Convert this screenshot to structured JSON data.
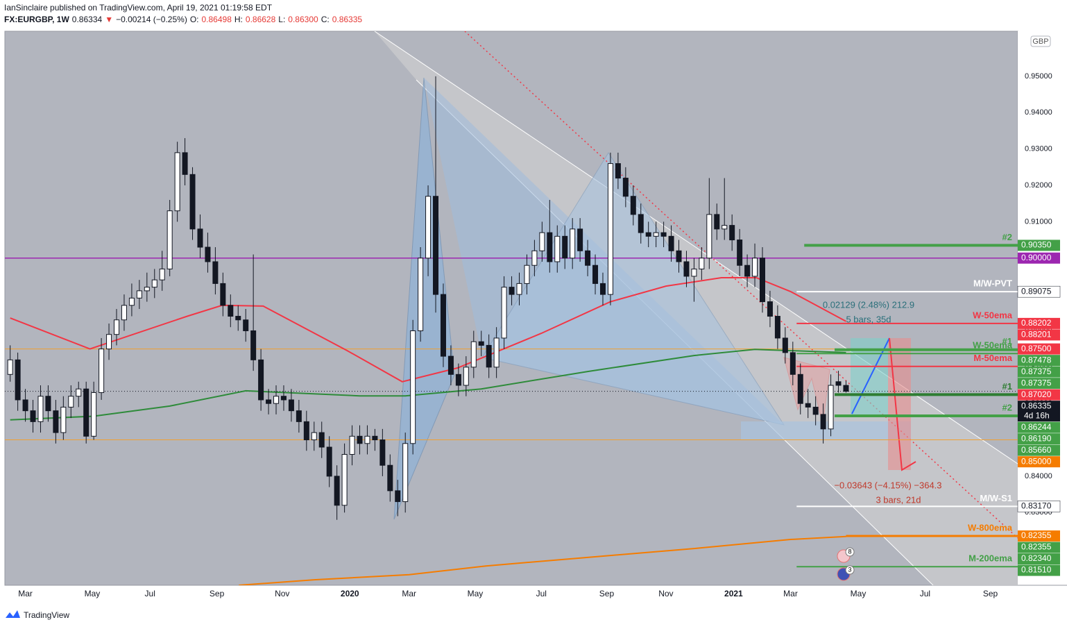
{
  "header": {
    "publisher": "IanSinclaire published on TradingView.com, April 19, 2021 01:19:58 EDT",
    "symbol": "FX:EURGBP, 1W",
    "last": "0.86334",
    "arrow": "▼",
    "change": "−0.00214 (−0.25%)",
    "ohlc": [
      {
        "key": "O:",
        "value": "0.86498"
      },
      {
        "key": "H:",
        "value": "0.86628"
      },
      {
        "key": "L:",
        "value": "0.86300"
      },
      {
        "key": "C:",
        "value": "0.86335"
      }
    ]
  },
  "brand": "TradingView",
  "currency": "GBP",
  "events": [
    8,
    3
  ],
  "annotations": [
    {
      "text": "0.02129 (2.48%) 212.9",
      "color": "#2a6f7a"
    },
    {
      "text": "5 bars, 35d",
      "color": "#2a6f7a"
    },
    {
      "text": "−0.03643 (−4.15%) −364.3",
      "color": "#c0392b"
    },
    {
      "text": "3 bars, 21d",
      "color": "#c0392b"
    }
  ],
  "chart_data": {
    "type": "candlestick",
    "up_color": "#ffffff",
    "down_color": "#131722",
    "xlim": [
      -0.7,
      132.6
    ],
    "ylim": [
      0.81,
      0.9624
    ],
    "xticks": [
      {
        "value": 2,
        "label": "Mar"
      },
      {
        "value": 10.8,
        "label": "May"
      },
      {
        "value": 18.4,
        "label": "Jul"
      },
      {
        "value": 27.2,
        "label": "Sep"
      },
      {
        "value": 35.8,
        "label": "Nov"
      },
      {
        "value": 44.7,
        "label": "2020"
      },
      {
        "value": 52.5,
        "label": "Mar"
      },
      {
        "value": 61.2,
        "label": "May"
      },
      {
        "value": 69.9,
        "label": "Jul"
      },
      {
        "value": 78.5,
        "label": "Sep"
      },
      {
        "value": 86.3,
        "label": "Nov"
      },
      {
        "value": 95.2,
        "label": "2021"
      },
      {
        "value": 102.7,
        "label": "Mar"
      },
      {
        "value": 111.6,
        "label": "May"
      },
      {
        "value": 120.4,
        "label": "Jul"
      },
      {
        "value": 129,
        "label": "Sep"
      }
    ],
    "yticks": [
      {
        "value": 0.83,
        "label": "0.83000"
      },
      {
        "value": 0.84,
        "label": "0.84000"
      },
      {
        "value": 0.85,
        "label": "0.85000"
      },
      {
        "value": 0.86,
        "label": "0.86000"
      },
      {
        "value": 0.87,
        "label": "0.87000"
      },
      {
        "value": 0.88,
        "label": "0.88000"
      },
      {
        "value": 0.89,
        "label": "0.89000"
      },
      {
        "value": 0.9,
        "label": "0.90000"
      },
      {
        "value": 0.91,
        "label": "0.91000"
      },
      {
        "value": 0.92,
        "label": "0.92000"
      },
      {
        "value": 0.93,
        "label": "0.93000"
      },
      {
        "value": 0.94,
        "label": "0.94000"
      },
      {
        "value": 0.95,
        "label": "0.95000"
      }
    ],
    "ohlc": [
      [
        0.868,
        0.876,
        0.866,
        0.872
      ],
      [
        0.872,
        0.874,
        0.858,
        0.861
      ],
      [
        0.861,
        0.864,
        0.855,
        0.858
      ],
      [
        0.858,
        0.861,
        0.852,
        0.855
      ],
      [
        0.855,
        0.865,
        0.852,
        0.862
      ],
      [
        0.862,
        0.865,
        0.855,
        0.858
      ],
      [
        0.858,
        0.861,
        0.849,
        0.852
      ],
      [
        0.852,
        0.862,
        0.85,
        0.859
      ],
      [
        0.859,
        0.865,
        0.856,
        0.862
      ],
      [
        0.862,
        0.866,
        0.859,
        0.864
      ],
      [
        0.864,
        0.866,
        0.849,
        0.851
      ],
      [
        0.851,
        0.866,
        0.85,
        0.863
      ],
      [
        0.863,
        0.878,
        0.861,
        0.875
      ],
      [
        0.875,
        0.882,
        0.872,
        0.879
      ],
      [
        0.879,
        0.886,
        0.876,
        0.883
      ],
      [
        0.883,
        0.89,
        0.88,
        0.887
      ],
      [
        0.887,
        0.893,
        0.884,
        0.889
      ],
      [
        0.889,
        0.894,
        0.886,
        0.891
      ],
      [
        0.891,
        0.896,
        0.888,
        0.892
      ],
      [
        0.892,
        0.897,
        0.889,
        0.894
      ],
      [
        0.894,
        0.902,
        0.891,
        0.897
      ],
      [
        0.897,
        0.916,
        0.895,
        0.913
      ],
      [
        0.913,
        0.932,
        0.91,
        0.929
      ],
      [
        0.929,
        0.933,
        0.92,
        0.923
      ],
      [
        0.923,
        0.925,
        0.905,
        0.908
      ],
      [
        0.908,
        0.912,
        0.9,
        0.903
      ],
      [
        0.903,
        0.907,
        0.896,
        0.899
      ],
      [
        0.899,
        0.903,
        0.89,
        0.893
      ],
      [
        0.893,
        0.896,
        0.884,
        0.887
      ],
      [
        0.887,
        0.89,
        0.881,
        0.884
      ],
      [
        0.884,
        0.887,
        0.88,
        0.883
      ],
      [
        0.883,
        0.886,
        0.877,
        0.88
      ],
      [
        0.88,
        0.901,
        0.869,
        0.872
      ],
      [
        0.872,
        0.875,
        0.858,
        0.861
      ],
      [
        0.861,
        0.864,
        0.857,
        0.86
      ],
      [
        0.86,
        0.865,
        0.857,
        0.862
      ],
      [
        0.862,
        0.865,
        0.858,
        0.861
      ],
      [
        0.861,
        0.864,
        0.855,
        0.858
      ],
      [
        0.858,
        0.861,
        0.852,
        0.855
      ],
      [
        0.855,
        0.858,
        0.847,
        0.85
      ],
      [
        0.85,
        0.855,
        0.847,
        0.852
      ],
      [
        0.852,
        0.855,
        0.845,
        0.848
      ],
      [
        0.848,
        0.851,
        0.837,
        0.84
      ],
      [
        0.84,
        0.843,
        0.828,
        0.832
      ],
      [
        0.832,
        0.849,
        0.83,
        0.846
      ],
      [
        0.846,
        0.854,
        0.843,
        0.851
      ],
      [
        0.851,
        0.854,
        0.846,
        0.849
      ],
      [
        0.849,
        0.854,
        0.846,
        0.851
      ],
      [
        0.851,
        0.853,
        0.847,
        0.85
      ],
      [
        0.85,
        0.853,
        0.84,
        0.843
      ],
      [
        0.843,
        0.846,
        0.833,
        0.836
      ],
      [
        0.836,
        0.839,
        0.829,
        0.833
      ],
      [
        0.833,
        0.852,
        0.83,
        0.849
      ],
      [
        0.849,
        0.883,
        0.846,
        0.88
      ],
      [
        0.88,
        0.903,
        0.877,
        0.9
      ],
      [
        0.9,
        0.92,
        0.895,
        0.917
      ],
      [
        0.917,
        0.95,
        0.885,
        0.89
      ],
      [
        0.89,
        0.893,
        0.87,
        0.873
      ],
      [
        0.873,
        0.876,
        0.865,
        0.868
      ],
      [
        0.868,
        0.871,
        0.862,
        0.865
      ],
      [
        0.865,
        0.873,
        0.862,
        0.87
      ],
      [
        0.87,
        0.88,
        0.867,
        0.877
      ],
      [
        0.877,
        0.88,
        0.873,
        0.876
      ],
      [
        0.876,
        0.879,
        0.867,
        0.87
      ],
      [
        0.87,
        0.881,
        0.867,
        0.878
      ],
      [
        0.878,
        0.895,
        0.875,
        0.892
      ],
      [
        0.892,
        0.895,
        0.887,
        0.89
      ],
      [
        0.89,
        0.896,
        0.887,
        0.893
      ],
      [
        0.893,
        0.901,
        0.89,
        0.898
      ],
      [
        0.898,
        0.905,
        0.895,
        0.902
      ],
      [
        0.902,
        0.91,
        0.899,
        0.907
      ],
      [
        0.907,
        0.916,
        0.896,
        0.899
      ],
      [
        0.899,
        0.909,
        0.896,
        0.906
      ],
      [
        0.906,
        0.909,
        0.897,
        0.9
      ],
      [
        0.9,
        0.911,
        0.897,
        0.908
      ],
      [
        0.908,
        0.911,
        0.899,
        0.902
      ],
      [
        0.902,
        0.905,
        0.895,
        0.898
      ],
      [
        0.898,
        0.901,
        0.89,
        0.893
      ],
      [
        0.893,
        0.896,
        0.887,
        0.89
      ],
      [
        0.89,
        0.929,
        0.887,
        0.926
      ],
      [
        0.926,
        0.929,
        0.919,
        0.922
      ],
      [
        0.922,
        0.925,
        0.914,
        0.917
      ],
      [
        0.917,
        0.92,
        0.909,
        0.912
      ],
      [
        0.912,
        0.915,
        0.904,
        0.907
      ],
      [
        0.907,
        0.91,
        0.903,
        0.906
      ],
      [
        0.906,
        0.91,
        0.903,
        0.907
      ],
      [
        0.907,
        0.91,
        0.903,
        0.906
      ],
      [
        0.906,
        0.909,
        0.899,
        0.902
      ],
      [
        0.902,
        0.905,
        0.896,
        0.899
      ],
      [
        0.899,
        0.902,
        0.892,
        0.895
      ],
      [
        0.895,
        0.9,
        0.888,
        0.897
      ],
      [
        0.897,
        0.903,
        0.894,
        0.9
      ],
      [
        0.9,
        0.922,
        0.897,
        0.912
      ],
      [
        0.912,
        0.915,
        0.905,
        0.908
      ],
      [
        0.908,
        0.922,
        0.905,
        0.909
      ],
      [
        0.909,
        0.912,
        0.902,
        0.905
      ],
      [
        0.905,
        0.908,
        0.895,
        0.898
      ],
      [
        0.898,
        0.901,
        0.892,
        0.895
      ],
      [
        0.895,
        0.904,
        0.892,
        0.9
      ],
      [
        0.9,
        0.903,
        0.885,
        0.888
      ],
      [
        0.888,
        0.891,
        0.881,
        0.884
      ],
      [
        0.884,
        0.887,
        0.875,
        0.878
      ],
      [
        0.878,
        0.881,
        0.871,
        0.874
      ],
      [
        0.874,
        0.877,
        0.865,
        0.868
      ],
      [
        0.868,
        0.871,
        0.857,
        0.86
      ],
      [
        0.86,
        0.864,
        0.856,
        0.859
      ],
      [
        0.859,
        0.862,
        0.854,
        0.857
      ],
      [
        0.857,
        0.86,
        0.849,
        0.853
      ],
      [
        0.853,
        0.868,
        0.851,
        0.865
      ],
      [
        0.866,
        0.869,
        0.863,
        0.865
      ],
      [
        0.86498,
        0.86628,
        0.863,
        0.86335
      ]
    ],
    "indicators": [
      {
        "color": "#f23645",
        "x": [
          0,
          10.5,
          23.3,
          27.9,
          33.3,
          44.3,
          51.6,
          58.9,
          69.9,
          79,
          86.3,
          93.6,
          98.2,
          102.7,
          110
        ],
        "values": [
          0.8835,
          0.875,
          0.884,
          0.887,
          0.8868,
          0.8746,
          0.866,
          0.8698,
          0.8793,
          0.888,
          0.8923,
          0.8946,
          0.8946,
          0.8908,
          0.8826
        ]
      },
      {
        "color": "#2e8b3a",
        "x": [
          0,
          11,
          21,
          31,
          46,
          52,
          62,
          76,
          90,
          98,
          110
        ],
        "values": [
          0.8555,
          0.8565,
          0.8593,
          0.8635,
          0.8621,
          0.8621,
          0.864,
          0.8688,
          0.8732,
          0.8749,
          0.874
        ]
      },
      {
        "color": "#f57c00",
        "x": [
          30.1,
          40,
          52.5,
          62.6,
          79,
          90,
          102.7,
          110
        ],
        "values": [
          0.81,
          0.8115,
          0.8129,
          0.8153,
          0.8182,
          0.8201,
          0.8226,
          0.8234
        ]
      }
    ],
    "last_price": 0.86335,
    "levels": [
      {
        "price": 0.9035,
        "color": "#43a047",
        "from": 104.5,
        "width": 4,
        "name": "#2"
      },
      {
        "price": 0.9,
        "color": "#9c27b0",
        "from": -0.7,
        "width": 1.5
      },
      {
        "price": 0.89075,
        "color": "#ffffff",
        "from": 103.5,
        "width": 2,
        "name": "M/W-PVT"
      },
      {
        "price": 0.88202,
        "color": "#f23645",
        "from": 103.5,
        "width": 2,
        "name": "W-50ema"
      },
      {
        "price": 0.875,
        "color": "#f0a030",
        "from": -0.7,
        "width": 1
      },
      {
        "price": 0.87478,
        "color": "#43a047",
        "from": 108.5,
        "width": 4,
        "name": "#1"
      },
      {
        "price": 0.87375,
        "color": "#43a047",
        "from": 103.5,
        "width": 2,
        "name": "W-50ema"
      },
      {
        "price": 0.8702,
        "color": "#f23645",
        "from": 103.5,
        "width": 2,
        "name": "M-50ema"
      },
      {
        "price": 0.86244,
        "color": "#2e7d32",
        "from": 108.5,
        "width": 4,
        "name": "#1"
      },
      {
        "price": 0.8566,
        "color": "#43a047",
        "from": 108.5,
        "width": 4,
        "name": "#2"
      },
      {
        "price": 0.85,
        "color": "#f0a030",
        "from": -0.7,
        "width": 1
      },
      {
        "price": 0.8317,
        "color": "#ffffff",
        "from": 103.5,
        "width": 2,
        "name": "M/W-S1"
      },
      {
        "price": 0.82355,
        "color": "#f57c00",
        "from": 110,
        "width": 3,
        "name": "W-800ema"
      },
      {
        "price": 0.8151,
        "color": "#43a047",
        "from": 103.5,
        "width": 2,
        "name": "M-200ema"
      }
    ],
    "price_labels": [
      {
        "value": 0.9035,
        "label": "0.90350",
        "color": "#43a047"
      },
      {
        "value": 0.9,
        "label": "0.90000",
        "color": "#9c27b0"
      },
      {
        "value": 0.89075,
        "label": "0.89075",
        "color": "#ffffff"
      },
      {
        "value": 0.88202,
        "label": "0.88202",
        "color": "#f23645"
      },
      {
        "value": 0.88201,
        "label": "0.88201",
        "color": "#f23645"
      },
      {
        "value": 0.875,
        "label": "0.87500",
        "color": "#f23645"
      },
      {
        "value": 0.87478,
        "label": "0.87478",
        "color": "#43a047"
      },
      {
        "value": 0.87375,
        "label": "0.87375",
        "color": "#43a047"
      },
      {
        "value": 0.87375,
        "label": "0.87375",
        "color": "#43a047"
      },
      {
        "value": 0.8702,
        "label": "0.87020",
        "color": "#f23645"
      },
      {
        "value": 0.86335,
        "label": "0.86335",
        "color": "#131722",
        "sub": "4d 16h"
      },
      {
        "value": 0.86244,
        "label": "0.86244",
        "color": "#43a047"
      },
      {
        "value": 0.8619,
        "label": "0.86190",
        "color": "#43a047"
      },
      {
        "value": 0.8566,
        "label": "0.85660",
        "color": "#43a047"
      },
      {
        "value": 0.85,
        "label": "0.85000",
        "color": "#f57c00"
      },
      {
        "value": 0.8317,
        "label": "0.83170",
        "color": "#ffffff"
      },
      {
        "value": 0.82355,
        "label": "0.82355",
        "color": "#f57c00"
      },
      {
        "value": 0.82355,
        "label": "0.82355",
        "color": "#43a047"
      },
      {
        "value": 0.8234,
        "label": "0.82340",
        "color": "#43a047"
      },
      {
        "value": 0.8151,
        "label": "0.81510",
        "color": "#43a047"
      }
    ]
  }
}
